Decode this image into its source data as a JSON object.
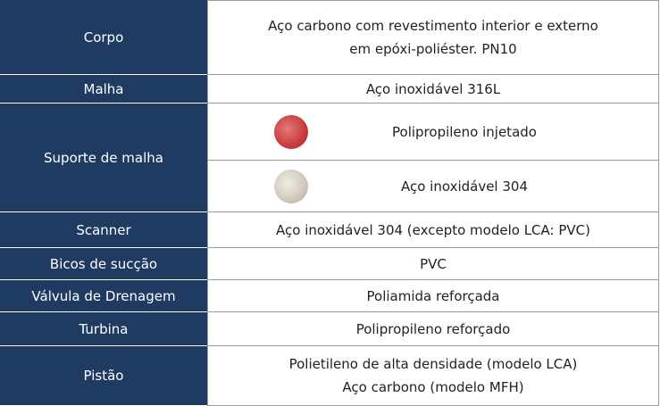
{
  "table": {
    "rows": [
      {
        "label": "Corpo",
        "value": [
          "Aço carbono com revestimento interior e externo",
          "em epóxi-poliéster. PN10"
        ]
      },
      {
        "label": "Malha",
        "value": [
          "Aço inoxidável 316L"
        ]
      },
      {
        "label": "Suporte de malha",
        "options": [
          "Polipropileno injetado",
          "Aço inoxidável 304"
        ]
      },
      {
        "label": "Scanner",
        "value": [
          "Aço inoxidável 304 (excepto modelo LCA: PVC)"
        ]
      },
      {
        "label": "Bicos de sucção",
        "value": [
          "PVC"
        ]
      },
      {
        "label": "Válvula de Drenagem",
        "value": [
          "Poliamida reforçada"
        ]
      },
      {
        "label": "Turbina",
        "value": [
          "Polipropileno reforçado"
        ]
      },
      {
        "label": "Pistão",
        "value": [
          "Polietileno de alta densidade (modelo LCA)",
          "Aço carbono (modelo MFH)"
        ]
      }
    ]
  }
}
